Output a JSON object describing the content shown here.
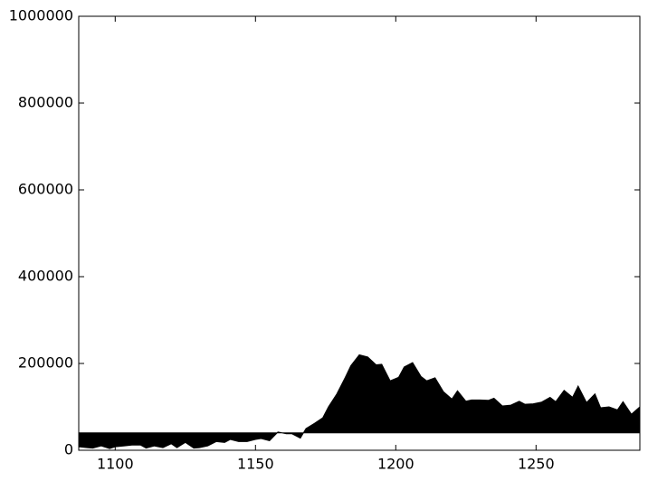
{
  "chart_data": {
    "type": "fill_between",
    "x": [
      1087,
      1090,
      1092,
      1095,
      1098,
      1100,
      1103,
      1106,
      1109,
      1111,
      1114,
      1117,
      1120,
      1122,
      1125,
      1128,
      1130,
      1133,
      1136,
      1139,
      1141,
      1144,
      1147,
      1150,
      1152,
      1155,
      1158,
      1161,
      1163,
      1166,
      1168,
      1171,
      1174,
      1176,
      1179,
      1182,
      1184,
      1187,
      1190,
      1193,
      1195,
      1198,
      1201,
      1203,
      1206,
      1209,
      1211,
      1214,
      1217,
      1220,
      1222,
      1225,
      1227,
      1230,
      1233,
      1235,
      1238,
      1241,
      1244,
      1246,
      1249,
      1252,
      1255,
      1257,
      1260,
      1263,
      1265,
      1268,
      1271,
      1273,
      1276,
      1279,
      1281,
      1284,
      1287
    ],
    "values": [
      8000,
      6000,
      5000,
      10000,
      4000,
      8000,
      10000,
      12000,
      12000,
      5000,
      10000,
      6000,
      15000,
      6000,
      18000,
      5000,
      6000,
      10000,
      20000,
      18000,
      25000,
      20000,
      20000,
      25000,
      27000,
      22000,
      42000,
      38000,
      38000,
      28000,
      50000,
      62000,
      75000,
      100000,
      130000,
      168000,
      195000,
      220000,
      215000,
      197000,
      198000,
      160000,
      168000,
      192000,
      202000,
      170000,
      160000,
      167000,
      135000,
      118000,
      137000,
      113000,
      116000,
      116000,
      115000,
      120000,
      102000,
      104000,
      113000,
      106000,
      107000,
      111000,
      122000,
      112000,
      138000,
      122000,
      148000,
      110000,
      130000,
      98000,
      100000,
      93000,
      112000,
      83000,
      100000
    ],
    "baseline": 40000,
    "color": "#000000",
    "xlim": [
      1087,
      1287
    ],
    "xticks": [
      1100,
      1150,
      1200,
      1250
    ],
    "ylim": [
      0,
      1000000
    ],
    "yticks": [
      0,
      200000,
      400000,
      600000,
      800000,
      1000000
    ]
  }
}
